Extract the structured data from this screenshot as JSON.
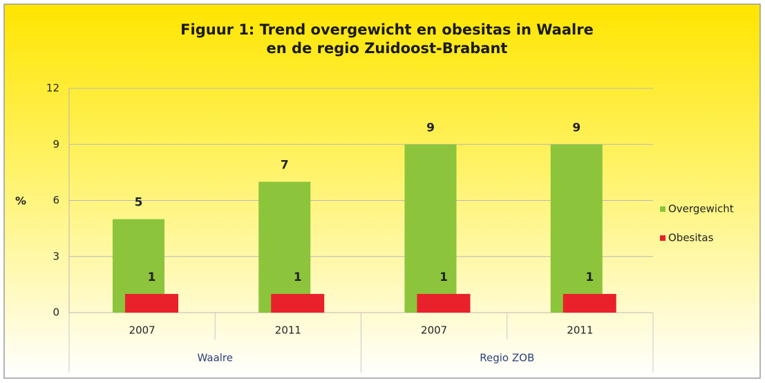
{
  "chart_data": {
    "type": "bar",
    "title": [
      "Figuur 1: Trend overgewicht en obesitas in Waalre",
      "en de regio Zuidoost-Brabant"
    ],
    "y_label": "%",
    "groups": [
      {
        "name": "Waalre",
        "categories": [
          "2007",
          "2011"
        ]
      },
      {
        "name": "Regio ZOB",
        "categories": [
          "2007",
          "2011"
        ]
      }
    ],
    "series": [
      {
        "name": "Overgewicht",
        "color": "#8cc43c",
        "values": [
          5,
          7,
          9,
          9
        ]
      },
      {
        "name": "Obesitas",
        "color": "#e8212b",
        "values": [
          1,
          1,
          1,
          1
        ]
      }
    ],
    "ylim": [
      0,
      12
    ],
    "yticks": [
      0,
      3,
      6,
      9,
      12
    ],
    "grid": true,
    "legend": "right"
  }
}
